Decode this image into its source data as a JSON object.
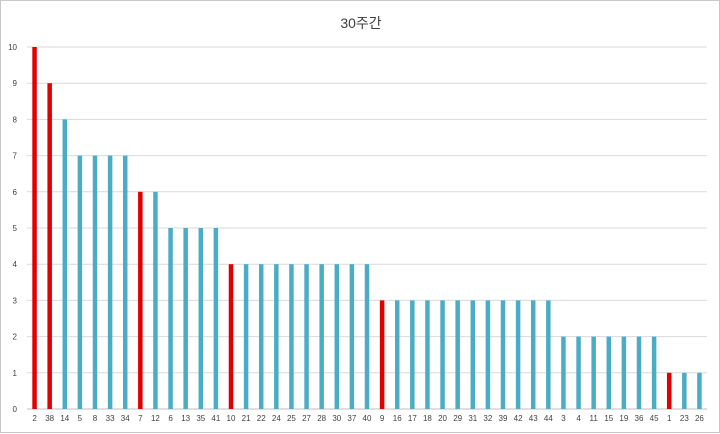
{
  "chart_data": {
    "type": "bar",
    "title": "30주간",
    "xlabel": "",
    "ylabel": "",
    "ylim": [
      0,
      10
    ],
    "yticks": [
      0,
      1,
      2,
      3,
      4,
      5,
      6,
      7,
      8,
      9,
      10
    ],
    "grid": true,
    "legend": "none",
    "colors": {
      "default": "#4bacc6",
      "highlight": "#e00000",
      "grid": "#d9d9d9",
      "axis": "#bfbfbf"
    },
    "categories": [
      "2",
      "38",
      "14",
      "5",
      "8",
      "33",
      "34",
      "7",
      "12",
      "6",
      "13",
      "35",
      "41",
      "10",
      "21",
      "22",
      "24",
      "25",
      "27",
      "28",
      "30",
      "37",
      "40",
      "9",
      "16",
      "17",
      "18",
      "20",
      "29",
      "31",
      "32",
      "39",
      "42",
      "43",
      "44",
      "3",
      "4",
      "11",
      "15",
      "19",
      "36",
      "45",
      "1",
      "23",
      "26"
    ],
    "values": [
      10,
      9,
      8,
      7,
      7,
      7,
      7,
      6,
      6,
      5,
      5,
      5,
      5,
      4,
      4,
      4,
      4,
      4,
      4,
      4,
      4,
      4,
      4,
      3,
      3,
      3,
      3,
      3,
      3,
      3,
      3,
      3,
      3,
      3,
      3,
      2,
      2,
      2,
      2,
      2,
      2,
      2,
      1,
      1,
      1
    ],
    "highlight": [
      true,
      true,
      false,
      false,
      false,
      false,
      false,
      true,
      false,
      false,
      false,
      false,
      false,
      true,
      false,
      false,
      false,
      false,
      false,
      false,
      false,
      false,
      false,
      true,
      false,
      false,
      false,
      false,
      false,
      false,
      false,
      false,
      false,
      false,
      false,
      false,
      false,
      false,
      false,
      false,
      false,
      false,
      true,
      false,
      false
    ]
  }
}
